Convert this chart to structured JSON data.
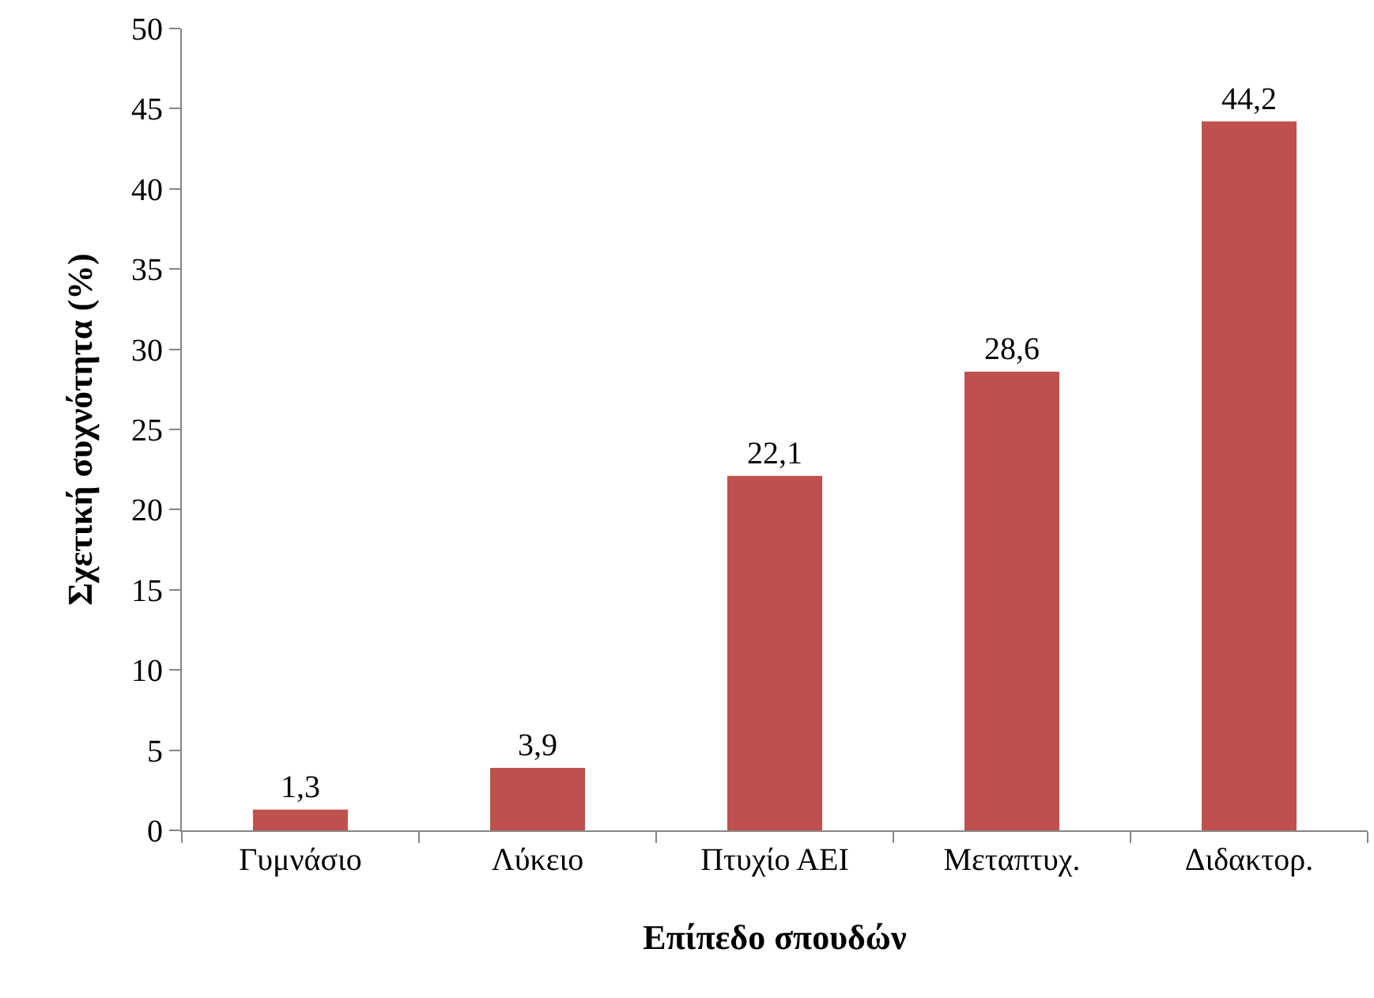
{
  "chart_data": {
    "type": "bar",
    "xlabel": "Επίπεδο σπουδών",
    "ylabel": "Σχετική συχνότητα (%)",
    "categories": [
      "Γυμνάσιο",
      "Λύκειο",
      "Πτυχίο ΑΕΙ",
      "Μεταπτυχ.",
      "Διδακτορ."
    ],
    "values": [
      1.3,
      3.9,
      22.1,
      28.6,
      44.2
    ],
    "value_labels": [
      "1,3",
      "3,9",
      "22,1",
      "28,6",
      "44,2"
    ],
    "color": "#c0504d",
    "ylim": [
      0,
      50
    ],
    "yticks": [
      0,
      5,
      10,
      15,
      20,
      25,
      30,
      35,
      40,
      45,
      50
    ],
    "grid": false
  }
}
